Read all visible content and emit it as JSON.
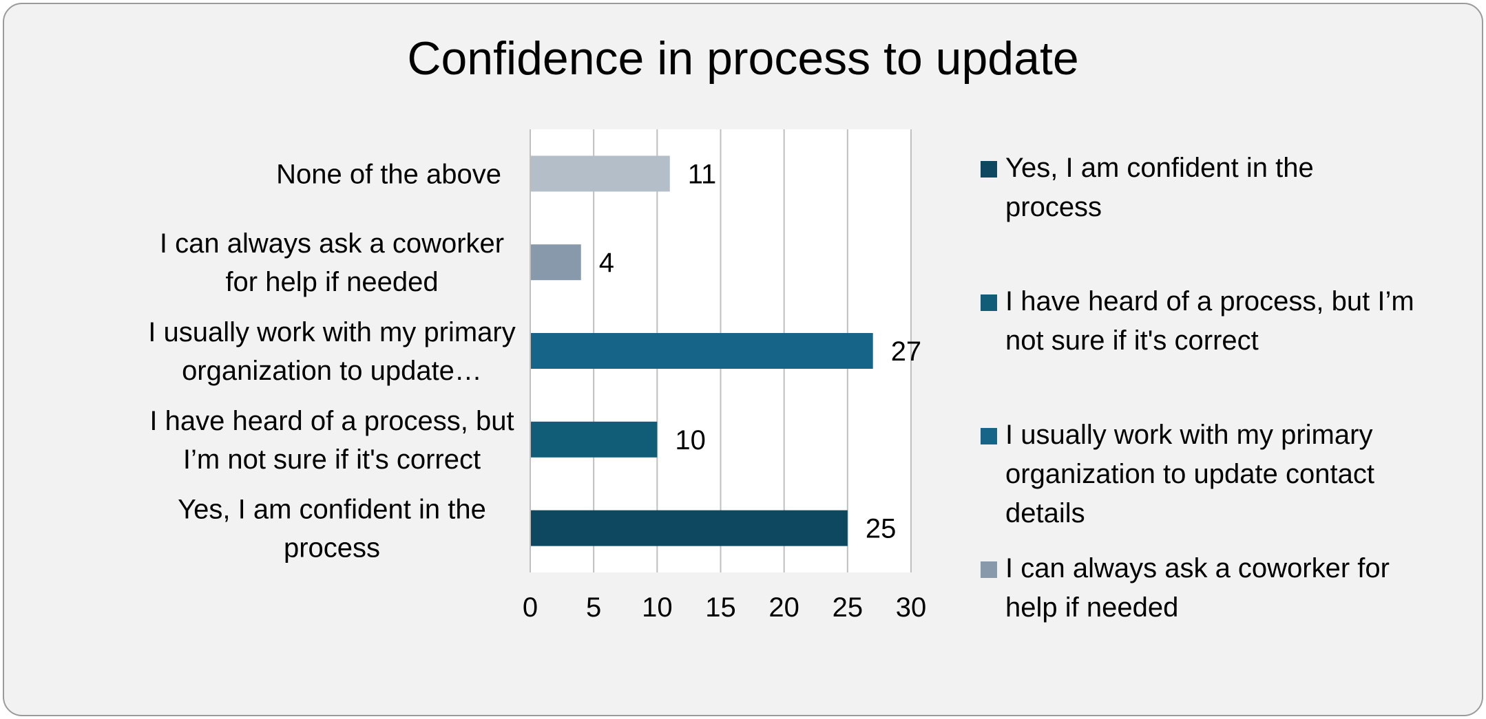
{
  "chart_data": {
    "type": "bar",
    "orientation": "horizontal",
    "title": "Confidence in process to update",
    "xlabel": "",
    "ylabel": "",
    "xlim": [
      0,
      30
    ],
    "x_ticks": [
      0,
      5,
      10,
      15,
      20,
      25,
      30
    ],
    "grid": true,
    "legend_position": "right",
    "categories": [
      "Yes, I am confident in the\nprocess",
      "I have heard of a process, but\nI’m not sure if it's correct",
      "I usually work with my primary\norganization to update…",
      "I can always ask a coworker\nfor help if needed",
      "None of the above"
    ],
    "values": [
      25,
      10,
      27,
      4,
      11
    ],
    "colors": [
      "#0e4760",
      "#115d78",
      "#166589",
      "#8899ab",
      "#b4bec8"
    ],
    "legend": [
      {
        "label": "Yes, I am confident in the\nprocess",
        "color": "#0e4760"
      },
      {
        "label": "I have heard of a process, but I’m\nnot sure if it's correct",
        "color": "#115d78"
      },
      {
        "label": "I usually work with my primary\norganization to update contact\ndetails",
        "color": "#166589"
      },
      {
        "label": "I can always ask a coworker for\nhelp if needed",
        "color": "#8899ab"
      }
    ]
  }
}
